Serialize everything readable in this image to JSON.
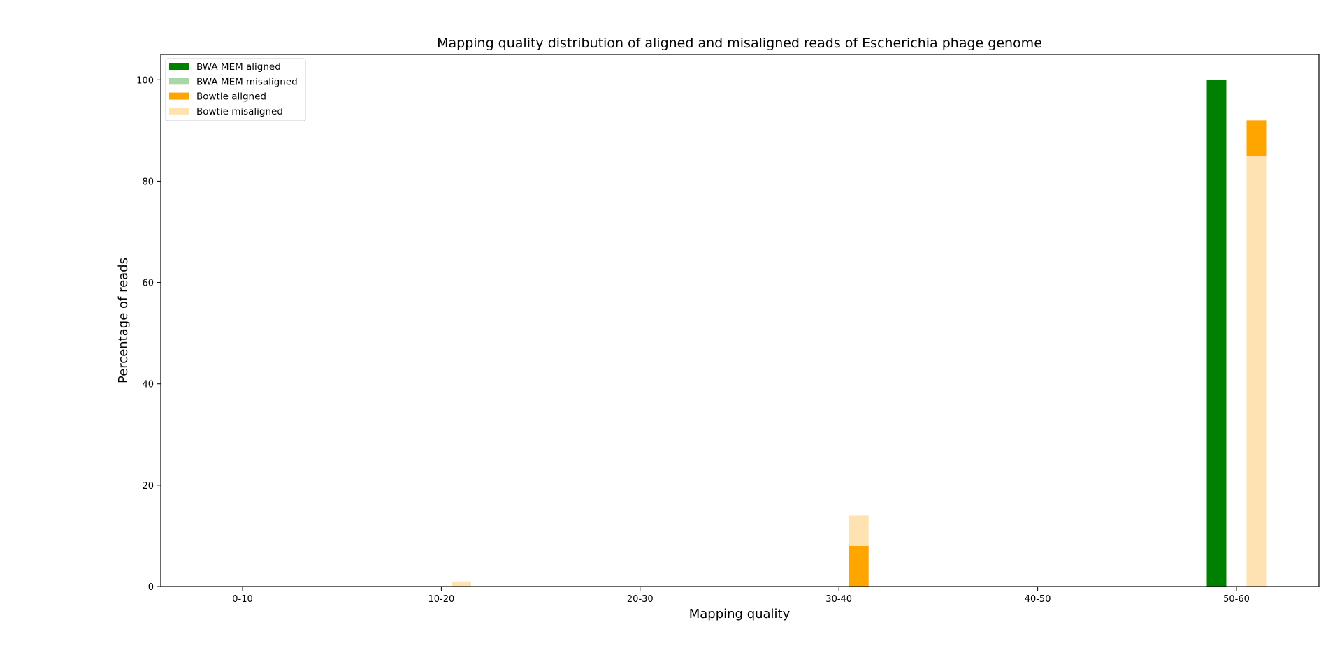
{
  "chart_data": {
    "type": "bar",
    "title": "Mapping quality distribution of aligned and misaligned reads of Escherichia phage genome",
    "xlabel": "Mapping quality",
    "ylabel": "Percentage of reads",
    "categories": [
      "0-10",
      "10-20",
      "20-30",
      "30-40",
      "40-50",
      "50-60"
    ],
    "ylim": [
      0,
      105
    ],
    "yticks": [
      0,
      20,
      40,
      60,
      80,
      100
    ],
    "grid": false,
    "legend_position": "top-left",
    "groups": [
      {
        "name": "BWA MEM",
        "series": [
          {
            "name": "BWA MEM aligned",
            "color": "#008000",
            "values": [
              0,
              0,
              0,
              0,
              0,
              100
            ]
          },
          {
            "name": "BWA MEM misaligned",
            "color": "#a8d8a8",
            "values": [
              0,
              0,
              0,
              0,
              0,
              0
            ]
          }
        ]
      },
      {
        "name": "Bowtie",
        "series": [
          {
            "name": "Bowtie aligned",
            "color": "#ffa500",
            "values": [
              0,
              0,
              0,
              8,
              0,
              92
            ]
          },
          {
            "name": "Bowtie misaligned",
            "color": "#ffe2b2",
            "values": [
              0,
              1,
              0,
              14,
              0,
              85
            ]
          }
        ]
      }
    ]
  }
}
